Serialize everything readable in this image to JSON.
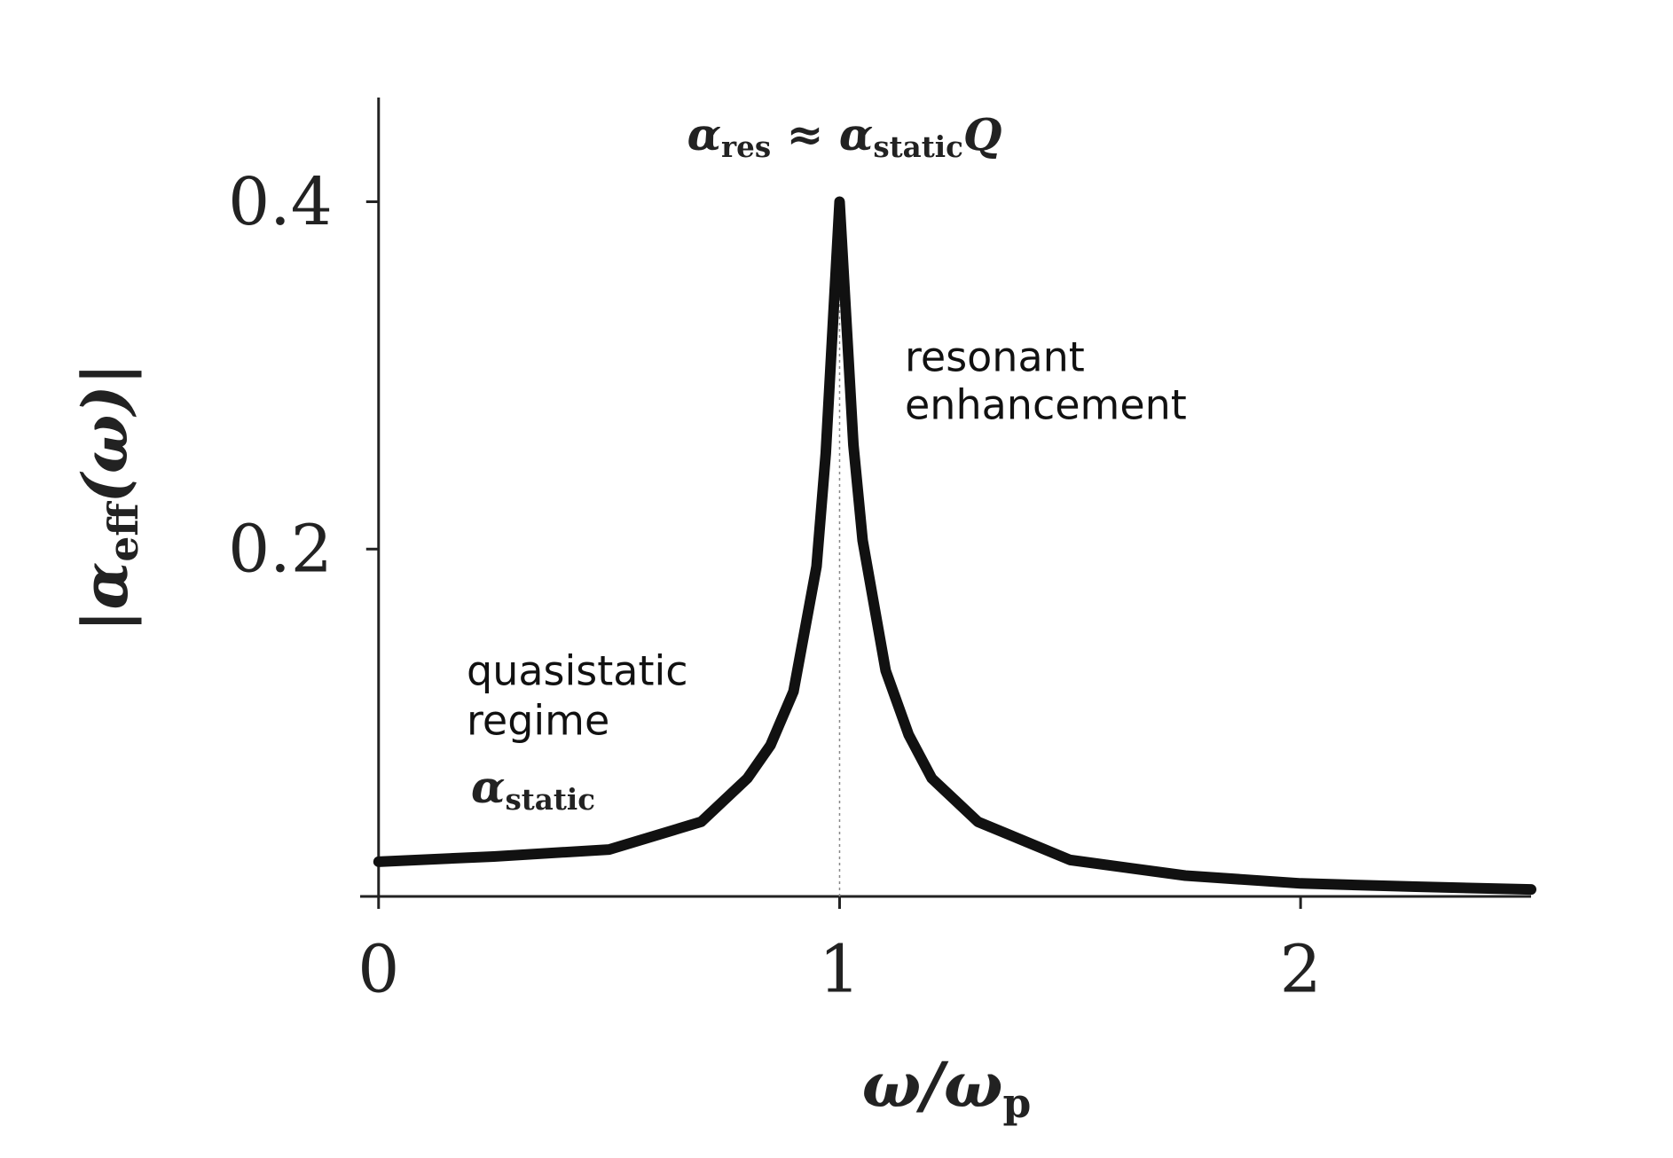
{
  "chart_data": {
    "type": "line",
    "x": [
      0,
      0.25,
      0.5,
      0.7,
      0.8,
      0.85,
      0.9,
      0.95,
      0.97,
      1,
      1.03,
      1.05,
      1.1,
      1.15,
      1.2,
      1.3,
      1.5,
      1.75,
      2,
      2.25,
      2.5
    ],
    "series": [
      {
        "color": "#111111",
        "values": [
          0.02,
          0.023,
          0.027,
          0.043,
          0.068,
          0.087,
          0.118,
          0.19,
          0.255,
          0.4,
          0.26,
          0.205,
          0.13,
          0.093,
          0.068,
          0.043,
          0.021,
          0.012,
          0.0075,
          0.0056,
          0.004
        ]
      }
    ],
    "xlim": [
      -0.04,
      2.5
    ],
    "xticks": [
      0,
      1,
      2
    ],
    "ylim": [
      0,
      0.46
    ],
    "yticks": [
      0.2,
      0.4
    ],
    "reference_line": 1,
    "x_label": [
      "ω/ω",
      "p"
    ],
    "y_label": [
      "|α",
      "eff",
      "(ω)|"
    ],
    "peak_label": [
      "α",
      "res",
      " ≈ α",
      "static",
      "Q"
    ],
    "resonance_note": [
      "resonant",
      "enhancement"
    ],
    "quasistatic_note": [
      "quasistatic",
      "regime"
    ],
    "static_label": [
      "α",
      "static"
    ]
  }
}
